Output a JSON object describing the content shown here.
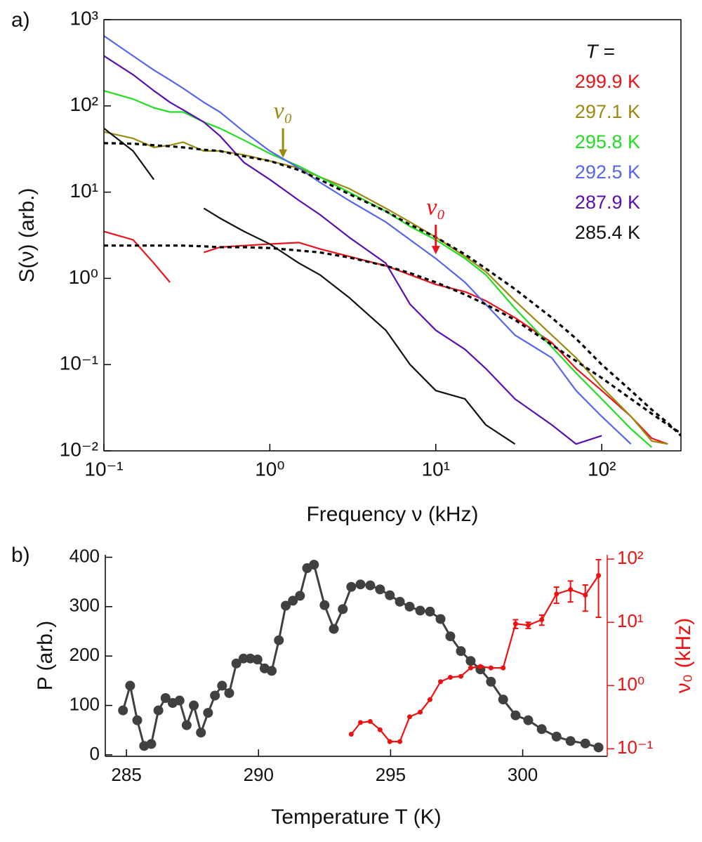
{
  "chart_data": [
    {
      "type": "line",
      "panel_label": "a)",
      "xlabel": "Frequency ν (kHz)",
      "ylabel": "S(ν) (arb.)",
      "x_log": true,
      "y_log": true,
      "xlim": [
        0.1,
        300
      ],
      "ylim": [
        0.01,
        1000
      ],
      "xticks": [
        {
          "value": 0.1,
          "label": "10⁻¹"
        },
        {
          "value": 1,
          "label": "10⁰"
        },
        {
          "value": 10,
          "label": "10¹"
        },
        {
          "value": 100,
          "label": "10²"
        }
      ],
      "yticks": [
        {
          "value": 0.01,
          "label": "10⁻²"
        },
        {
          "value": 0.1,
          "label": "10⁻¹"
        },
        {
          "value": 1,
          "label": "10⁰"
        },
        {
          "value": 10,
          "label": "10¹"
        },
        {
          "value": 100,
          "label": "10²"
        },
        {
          "value": 1000,
          "label": "10³"
        }
      ],
      "legend_title": "T =",
      "legend": "upper right",
      "x": [
        0.1,
        0.15,
        0.2,
        0.25,
        0.3,
        0.4,
        0.5,
        0.7,
        1,
        1.5,
        2,
        3,
        5,
        7,
        10,
        15,
        20,
        30,
        50,
        70,
        100,
        150,
        200,
        250,
        300
      ],
      "series": [
        {
          "name": "299.9 K",
          "color": "#e8141c",
          "values": [
            3.5,
            2.8,
            1.5,
            0.9,
            null,
            2.0,
            2.3,
            2.4,
            2.5,
            2.6,
            2.2,
            1.8,
            1.4,
            1.1,
            0.85,
            0.7,
            0.55,
            0.35,
            0.18,
            0.09,
            0.05,
            0.025,
            0.014,
            0.012,
            null
          ]
        },
        {
          "name": "297.1 K",
          "color": "#9a8a10",
          "values": [
            50,
            42,
            33,
            35,
            38,
            30,
            30,
            27,
            23,
            19,
            15,
            11,
            6.5,
            4.5,
            3,
            1.8,
            1.2,
            0.55,
            0.22,
            0.12,
            0.055,
            0.025,
            0.013,
            0.012,
            null
          ]
        },
        {
          "name": "295.8 K",
          "color": "#22dd22",
          "values": [
            150,
            120,
            95,
            85,
            85,
            65,
            55,
            40,
            28,
            20,
            15,
            10,
            6,
            4,
            2.8,
            1.7,
            1.1,
            0.45,
            0.16,
            0.08,
            0.04,
            0.018,
            0.011,
            null,
            null
          ]
        },
        {
          "name": "292.5 K",
          "color": "#5566ee",
          "values": [
            650,
            380,
            260,
            200,
            160,
            110,
            85,
            50,
            30,
            19,
            13,
            8,
            4.5,
            2.8,
            1.7,
            0.9,
            0.5,
            0.22,
            0.12,
            0.05,
            0.025,
            0.012,
            null,
            null,
            null
          ]
        },
        {
          "name": "287.9 K",
          "color": "#5a0fb0",
          "values": [
            380,
            230,
            150,
            110,
            90,
            65,
            45,
            22,
            14,
            8,
            5.5,
            3,
            1.5,
            0.5,
            0.25,
            0.15,
            0.09,
            0.04,
            0.02,
            0.012,
            0.015,
            null,
            null,
            null,
            null
          ]
        },
        {
          "name": "285.4 K",
          "color": "#111111",
          "values": [
            55,
            30,
            14,
            null,
            null,
            6.5,
            5,
            3.5,
            2.5,
            1.5,
            1.1,
            0.6,
            0.25,
            0.1,
            0.05,
            0.04,
            0.02,
            0.012,
            null,
            null,
            null,
            null,
            null,
            null,
            null
          ]
        }
      ],
      "fits": [
        {
          "color": "#000000",
          "style": "dashed",
          "values": [
            37,
            36.5,
            35,
            34,
            33,
            31,
            30,
            26,
            23,
            18,
            14,
            9.5,
            6,
            4.2,
            3,
            1.9,
            1.3,
            0.75,
            0.35,
            0.2,
            0.1,
            0.05,
            0.03,
            0.021,
            0.015
          ]
        },
        {
          "color": "#000000",
          "style": "dashed",
          "values": [
            2.4,
            2.4,
            2.4,
            2.4,
            2.4,
            2.35,
            2.3,
            2.3,
            2.25,
            2.1,
            2.0,
            1.75,
            1.4,
            1.15,
            0.9,
            0.65,
            0.5,
            0.33,
            0.17,
            0.11,
            0.07,
            0.04,
            0.027,
            0.02,
            0.016
          ]
        }
      ],
      "annotations": [
        {
          "text": "ν₀",
          "x": 1.2,
          "y": 55,
          "arrow_to": 25,
          "color": "#9a8a10"
        },
        {
          "text": "ν₀",
          "x": 10,
          "y": 4.2,
          "arrow_to": 1.9,
          "color": "#e8141c"
        }
      ]
    },
    {
      "type": "line",
      "panel_label": "b)",
      "xlabel": "Temperature T (K)",
      "ylabel": "P (arb.)",
      "y2label": "ν₀ (kHz)",
      "xlim": [
        284.2,
        303.2
      ],
      "ylim": [
        -3,
        405
      ],
      "y2_log": true,
      "y2lim": [
        0.076,
        117
      ],
      "xticks": [
        285,
        290,
        295,
        300
      ],
      "yticks": [
        0,
        100,
        200,
        300,
        400
      ],
      "y2ticks": [
        {
          "value": 0.1,
          "label": "10⁻¹"
        },
        {
          "value": 1,
          "label": "10⁰"
        },
        {
          "value": 10,
          "label": "10¹"
        },
        {
          "value": 100,
          "label": "10²"
        }
      ],
      "series": [
        {
          "color": "#404040",
          "x": [
            284.87,
            285.14,
            285.41,
            285.67,
            285.94,
            286.21,
            286.48,
            286.75,
            287.01,
            287.28,
            287.55,
            287.82,
            288.09,
            288.35,
            288.62,
            288.89,
            289.16,
            289.43,
            289.69,
            289.96,
            290.23,
            290.5,
            290.77,
            291.03,
            291.3,
            291.57,
            291.84,
            292.1,
            292.5,
            292.85,
            293.19,
            293.51,
            293.86,
            294.23,
            294.6,
            294.97,
            295.35,
            295.72,
            296.12,
            296.49,
            296.89,
            297.26,
            297.66,
            298.03,
            298.4,
            298.8,
            299.26,
            299.73,
            300.21,
            300.72,
            301.28,
            301.81,
            302.37,
            302.87
          ],
          "values": [
            90,
            140,
            70,
            18,
            22,
            90,
            115,
            105,
            110,
            60,
            100,
            45,
            85,
            120,
            140,
            125,
            185,
            195,
            195,
            193,
            175,
            170,
            232,
            302,
            312,
            322,
            378,
            385,
            303,
            255,
            295,
            340,
            345,
            343,
            335,
            323,
            310,
            300,
            292,
            290,
            275,
            240,
            210,
            190,
            173,
            148,
            112,
            80,
            70,
            52,
            37,
            28,
            23,
            15
          ]
        },
        {
          "color": "#ee1111",
          "axis": "y2",
          "x": [
            293.51,
            293.86,
            294.23,
            294.6,
            294.97,
            295.35,
            295.72,
            296.12,
            296.49,
            296.89,
            297.26,
            297.66,
            298.03,
            298.4,
            298.8,
            299.26,
            299.73,
            300.21,
            300.72,
            301.28,
            301.81,
            302.37,
            302.87
          ],
          "values": [
            0.17,
            0.26,
            0.27,
            0.2,
            0.13,
            0.13,
            0.32,
            0.38,
            0.6,
            1.15,
            1.35,
            1.4,
            1.9,
            2.0,
            1.9,
            1.9,
            9.5,
            9,
            11,
            28,
            33,
            27,
            55
          ],
          "errors": [
            null,
            null,
            null,
            null,
            null,
            null,
            null,
            null,
            null,
            null,
            null,
            null,
            null,
            null,
            null,
            null,
            1.5,
            1,
            2,
            8,
            12,
            12,
            43
          ]
        }
      ]
    }
  ]
}
